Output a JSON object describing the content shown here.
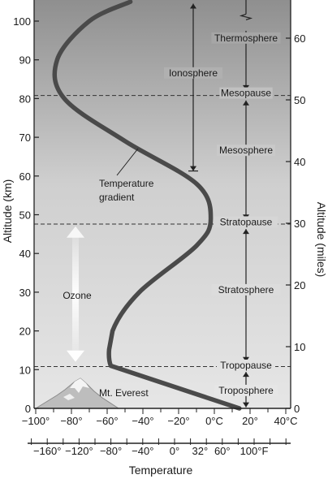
{
  "title": "",
  "axes": {
    "left": {
      "label": "Altitude (km)",
      "ticks": [
        {
          "label": "0",
          "value": 0
        },
        {
          "label": "10",
          "value": 10
        },
        {
          "label": "20",
          "value": 20
        },
        {
          "label": "30",
          "value": 30
        },
        {
          "label": "40",
          "value": 40
        },
        {
          "label": "50",
          "value": 50
        },
        {
          "label": "60",
          "value": 60
        },
        {
          "label": "70",
          "value": 70
        },
        {
          "label": "80",
          "value": 80
        },
        {
          "label": "90",
          "value": 90
        },
        {
          "label": "100",
          "value": 100
        }
      ]
    },
    "right": {
      "label": "Altitude (miles)",
      "ticks": [
        {
          "label": "0",
          "value": 0
        },
        {
          "label": "10",
          "value": 10
        },
        {
          "label": "20",
          "value": 20
        },
        {
          "label": "30",
          "value": 30
        },
        {
          "label": "40",
          "value": 40
        },
        {
          "label": "50",
          "value": 50
        },
        {
          "label": "60",
          "value": 60
        }
      ]
    },
    "celsius": {
      "ticks": [
        {
          "label": "−100°",
          "value": -100
        },
        {
          "label": "−80°",
          "value": -80
        },
        {
          "label": "−60°",
          "value": -60
        },
        {
          "label": "−40°",
          "value": -40
        },
        {
          "label": "−20°",
          "value": -20
        },
        {
          "label": "0°C",
          "value": 0
        },
        {
          "label": "20°",
          "value": 20
        },
        {
          "label": "40°C",
          "value": 40
        }
      ]
    },
    "fahrenheit": {
      "ticks": [
        {
          "label": "−160°",
          "value": -160
        },
        {
          "label": "−120°",
          "value": -120
        },
        {
          "label": "−80°",
          "value": -80
        },
        {
          "label": "−40°",
          "value": -40
        },
        {
          "label": "0°",
          "value": 0
        },
        {
          "label": "32°",
          "value": 32
        },
        {
          "label": "60°",
          "value": 60
        },
        {
          "label": "100°F",
          "value": 100
        }
      ]
    },
    "bottom_label": "Temperature"
  },
  "layers": [
    {
      "name": "Thermosphere",
      "altitude_km": 95
    },
    {
      "name": "Ionosphere",
      "altitude_km": 86
    },
    {
      "name": "Mesopause",
      "altitude_km": 80.8
    },
    {
      "name": "Mesosphere",
      "altitude_km": 66
    },
    {
      "name": "Stratopause",
      "altitude_km": 47.5
    },
    {
      "name": "Stratosphere",
      "altitude_km": 30
    },
    {
      "name": "Tropopause",
      "altitude_km": 10.5
    },
    {
      "name": "Troposphere",
      "altitude_km": 4
    }
  ],
  "boundaries_km": [
    10.8,
    47.6,
    80.8
  ],
  "annotations": {
    "temperature_gradient": [
      "Temperature",
      "gradient"
    ],
    "ozone": "Ozone",
    "everest": "Mt. Everest"
  },
  "temperature_profile": [
    {
      "temp_c": 14,
      "altitude_km": 0
    },
    {
      "temp_c": -58,
      "altitude_km": 11
    },
    {
      "temp_c": -57,
      "altitude_km": 20
    },
    {
      "temp_c": -42,
      "altitude_km": 30
    },
    {
      "temp_c": -10,
      "altitude_km": 42
    },
    {
      "temp_c": -2,
      "altitude_km": 49
    },
    {
      "temp_c": -10,
      "altitude_km": 58
    },
    {
      "temp_c": -50,
      "altitude_km": 69
    },
    {
      "temp_c": -84,
      "altitude_km": 80
    },
    {
      "temp_c": -88,
      "altitude_km": 90
    },
    {
      "temp_c": -70,
      "altitude_km": 100
    },
    {
      "temp_c": -47,
      "altitude_km": 105
    }
  ],
  "ionosphere_range_km": [
    61,
    105
  ],
  "ozone_range_km": [
    12,
    47
  ],
  "colors": {
    "curve": "#4a4a4a",
    "dashed": "#333333",
    "arrow": "#222222"
  }
}
